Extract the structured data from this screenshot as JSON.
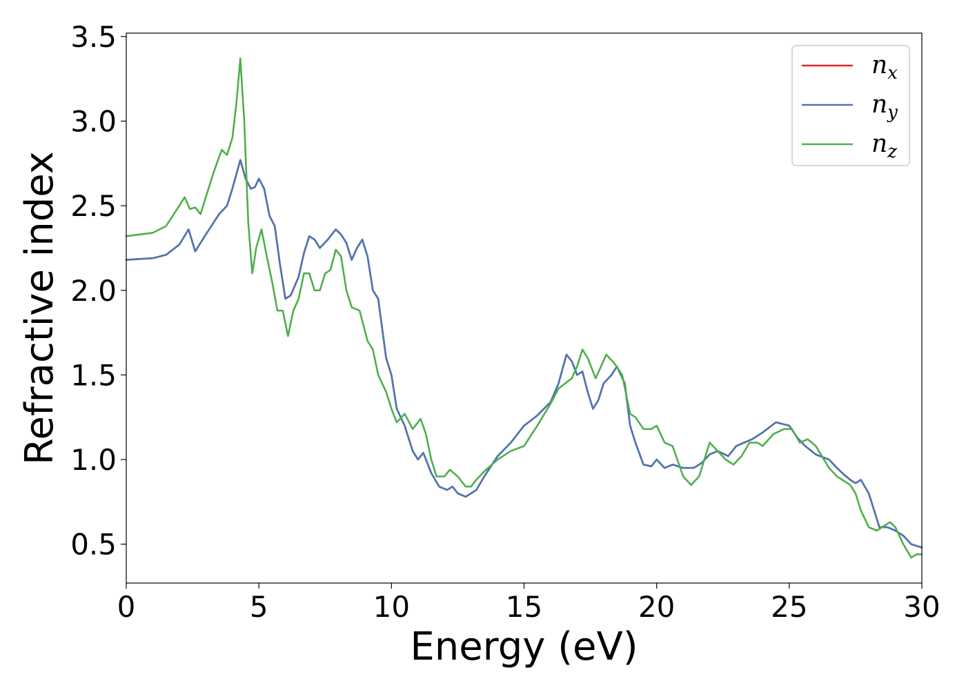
{
  "chart_data": {
    "type": "line",
    "title": "",
    "xlabel": "Energy (eV)",
    "ylabel": "Refractive index",
    "xlim": [
      0,
      30
    ],
    "ylim": [
      0.27,
      3.52
    ],
    "xticks": [
      0,
      5,
      10,
      15,
      20,
      25,
      30
    ],
    "xtick_labels": [
      "0",
      "5",
      "10",
      "15",
      "20",
      "25",
      "30"
    ],
    "yticks": [
      0.5,
      1.0,
      1.5,
      2.0,
      2.5,
      3.0,
      3.5
    ],
    "ytick_labels": [
      "0.5",
      "1.0",
      "1.5",
      "2.0",
      "2.5",
      "3.0",
      "3.5"
    ],
    "grid": false,
    "legend_position": "top-right",
    "series": [
      {
        "name": "n",
        "subscript": "x",
        "color": "#d62728",
        "points": [
          [
            0,
            2.18
          ],
          [
            1,
            2.19
          ],
          [
            1.5,
            2.21
          ],
          [
            2,
            2.27
          ],
          [
            2.35,
            2.36
          ],
          [
            2.6,
            2.23
          ],
          [
            3,
            2.33
          ],
          [
            3.5,
            2.45
          ],
          [
            3.8,
            2.5
          ],
          [
            4,
            2.6
          ],
          [
            4.3,
            2.77
          ],
          [
            4.5,
            2.66
          ],
          [
            4.7,
            2.6
          ],
          [
            4.85,
            2.61
          ],
          [
            5,
            2.66
          ],
          [
            5.2,
            2.6
          ],
          [
            5.4,
            2.44
          ],
          [
            5.6,
            2.38
          ],
          [
            5.8,
            2.15
          ],
          [
            6,
            1.95
          ],
          [
            6.2,
            1.97
          ],
          [
            6.5,
            2.08
          ],
          [
            6.7,
            2.22
          ],
          [
            6.9,
            2.32
          ],
          [
            7.1,
            2.3
          ],
          [
            7.3,
            2.25
          ],
          [
            7.6,
            2.3
          ],
          [
            7.9,
            2.36
          ],
          [
            8.1,
            2.33
          ],
          [
            8.3,
            2.28
          ],
          [
            8.5,
            2.18
          ],
          [
            8.7,
            2.25
          ],
          [
            8.9,
            2.3
          ],
          [
            9.1,
            2.2
          ],
          [
            9.3,
            2.0
          ],
          [
            9.5,
            1.95
          ],
          [
            9.8,
            1.6
          ],
          [
            10,
            1.5
          ],
          [
            10.2,
            1.3
          ],
          [
            10.5,
            1.2
          ],
          [
            10.8,
            1.05
          ],
          [
            11,
            1.0
          ],
          [
            11.2,
            1.04
          ],
          [
            11.5,
            0.92
          ],
          [
            11.8,
            0.84
          ],
          [
            12.1,
            0.82
          ],
          [
            12.3,
            0.84
          ],
          [
            12.5,
            0.8
          ],
          [
            12.8,
            0.78
          ],
          [
            13.2,
            0.82
          ],
          [
            13.5,
            0.9
          ],
          [
            14,
            1.02
          ],
          [
            14.5,
            1.1
          ],
          [
            15,
            1.2
          ],
          [
            15.5,
            1.26
          ],
          [
            16,
            1.34
          ],
          [
            16.3,
            1.45
          ],
          [
            16.6,
            1.62
          ],
          [
            16.8,
            1.58
          ],
          [
            17,
            1.5
          ],
          [
            17.2,
            1.52
          ],
          [
            17.4,
            1.4
          ],
          [
            17.6,
            1.3
          ],
          [
            17.8,
            1.35
          ],
          [
            18,
            1.45
          ],
          [
            18.3,
            1.5
          ],
          [
            18.5,
            1.55
          ],
          [
            18.8,
            1.45
          ],
          [
            19,
            1.2
          ],
          [
            19.2,
            1.1
          ],
          [
            19.5,
            0.97
          ],
          [
            19.8,
            0.96
          ],
          [
            20,
            1.0
          ],
          [
            20.3,
            0.95
          ],
          [
            20.6,
            0.97
          ],
          [
            21,
            0.95
          ],
          [
            21.4,
            0.95
          ],
          [
            21.7,
            0.98
          ],
          [
            22,
            1.03
          ],
          [
            22.3,
            1.05
          ],
          [
            22.7,
            1.02
          ],
          [
            23,
            1.08
          ],
          [
            23.3,
            1.1
          ],
          [
            23.6,
            1.12
          ],
          [
            24,
            1.16
          ],
          [
            24.5,
            1.22
          ],
          [
            25,
            1.2
          ],
          [
            25.3,
            1.13
          ],
          [
            25.6,
            1.08
          ],
          [
            26,
            1.03
          ],
          [
            26.5,
            1.0
          ],
          [
            26.8,
            0.95
          ],
          [
            27,
            0.92
          ],
          [
            27.3,
            0.88
          ],
          [
            27.5,
            0.86
          ],
          [
            27.7,
            0.88
          ],
          [
            28,
            0.8
          ],
          [
            28.2,
            0.7
          ],
          [
            28.4,
            0.6
          ],
          [
            28.7,
            0.6
          ],
          [
            29,
            0.58
          ],
          [
            29.3,
            0.55
          ],
          [
            29.6,
            0.5
          ],
          [
            30,
            0.48
          ]
        ]
      },
      {
        "name": "n",
        "subscript": "y",
        "color": "#4a77b4",
        "points": [
          [
            0,
            2.18
          ],
          [
            1,
            2.19
          ],
          [
            1.5,
            2.21
          ],
          [
            2,
            2.27
          ],
          [
            2.35,
            2.36
          ],
          [
            2.6,
            2.23
          ],
          [
            3,
            2.33
          ],
          [
            3.5,
            2.45
          ],
          [
            3.8,
            2.5
          ],
          [
            4,
            2.6
          ],
          [
            4.3,
            2.77
          ],
          [
            4.5,
            2.66
          ],
          [
            4.7,
            2.6
          ],
          [
            4.85,
            2.61
          ],
          [
            5,
            2.66
          ],
          [
            5.2,
            2.6
          ],
          [
            5.4,
            2.44
          ],
          [
            5.6,
            2.38
          ],
          [
            5.8,
            2.15
          ],
          [
            6,
            1.95
          ],
          [
            6.2,
            1.97
          ],
          [
            6.5,
            2.08
          ],
          [
            6.7,
            2.22
          ],
          [
            6.9,
            2.32
          ],
          [
            7.1,
            2.3
          ],
          [
            7.3,
            2.25
          ],
          [
            7.6,
            2.3
          ],
          [
            7.9,
            2.36
          ],
          [
            8.1,
            2.33
          ],
          [
            8.3,
            2.28
          ],
          [
            8.5,
            2.18
          ],
          [
            8.7,
            2.25
          ],
          [
            8.9,
            2.3
          ],
          [
            9.1,
            2.2
          ],
          [
            9.3,
            2.0
          ],
          [
            9.5,
            1.95
          ],
          [
            9.8,
            1.6
          ],
          [
            10,
            1.5
          ],
          [
            10.2,
            1.3
          ],
          [
            10.5,
            1.2
          ],
          [
            10.8,
            1.05
          ],
          [
            11,
            1.0
          ],
          [
            11.2,
            1.04
          ],
          [
            11.5,
            0.92
          ],
          [
            11.8,
            0.84
          ],
          [
            12.1,
            0.82
          ],
          [
            12.3,
            0.84
          ],
          [
            12.5,
            0.8
          ],
          [
            12.8,
            0.78
          ],
          [
            13.2,
            0.82
          ],
          [
            13.5,
            0.9
          ],
          [
            14,
            1.02
          ],
          [
            14.5,
            1.1
          ],
          [
            15,
            1.2
          ],
          [
            15.5,
            1.26
          ],
          [
            16,
            1.34
          ],
          [
            16.3,
            1.45
          ],
          [
            16.6,
            1.62
          ],
          [
            16.8,
            1.58
          ],
          [
            17,
            1.5
          ],
          [
            17.2,
            1.52
          ],
          [
            17.4,
            1.4
          ],
          [
            17.6,
            1.3
          ],
          [
            17.8,
            1.35
          ],
          [
            18,
            1.45
          ],
          [
            18.3,
            1.5
          ],
          [
            18.5,
            1.55
          ],
          [
            18.8,
            1.45
          ],
          [
            19,
            1.2
          ],
          [
            19.2,
            1.1
          ],
          [
            19.5,
            0.97
          ],
          [
            19.8,
            0.96
          ],
          [
            20,
            1.0
          ],
          [
            20.3,
            0.95
          ],
          [
            20.6,
            0.97
          ],
          [
            21,
            0.95
          ],
          [
            21.4,
            0.95
          ],
          [
            21.7,
            0.98
          ],
          [
            22,
            1.03
          ],
          [
            22.3,
            1.05
          ],
          [
            22.7,
            1.02
          ],
          [
            23,
            1.08
          ],
          [
            23.3,
            1.1
          ],
          [
            23.6,
            1.12
          ],
          [
            24,
            1.16
          ],
          [
            24.5,
            1.22
          ],
          [
            25,
            1.2
          ],
          [
            25.3,
            1.13
          ],
          [
            25.6,
            1.08
          ],
          [
            26,
            1.03
          ],
          [
            26.5,
            1.0
          ],
          [
            26.8,
            0.95
          ],
          [
            27,
            0.92
          ],
          [
            27.3,
            0.88
          ],
          [
            27.5,
            0.86
          ],
          [
            27.7,
            0.88
          ],
          [
            28,
            0.8
          ],
          [
            28.2,
            0.7
          ],
          [
            28.4,
            0.6
          ],
          [
            28.7,
            0.6
          ],
          [
            29,
            0.58
          ],
          [
            29.3,
            0.55
          ],
          [
            29.6,
            0.5
          ],
          [
            30,
            0.48
          ]
        ]
      },
      {
        "name": "n",
        "subscript": "z",
        "color": "#4daf4a",
        "points": [
          [
            0,
            2.32
          ],
          [
            1,
            2.34
          ],
          [
            1.5,
            2.38
          ],
          [
            2,
            2.5
          ],
          [
            2.2,
            2.55
          ],
          [
            2.4,
            2.48
          ],
          [
            2.6,
            2.49
          ],
          [
            2.8,
            2.45
          ],
          [
            3,
            2.55
          ],
          [
            3.3,
            2.7
          ],
          [
            3.6,
            2.83
          ],
          [
            3.8,
            2.8
          ],
          [
            4,
            2.9
          ],
          [
            4.15,
            3.1
          ],
          [
            4.3,
            3.37
          ],
          [
            4.45,
            3.0
          ],
          [
            4.6,
            2.4
          ],
          [
            4.75,
            2.1
          ],
          [
            4.9,
            2.25
          ],
          [
            5.1,
            2.36
          ],
          [
            5.3,
            2.2
          ],
          [
            5.5,
            2.05
          ],
          [
            5.7,
            1.88
          ],
          [
            5.9,
            1.88
          ],
          [
            6.1,
            1.73
          ],
          [
            6.3,
            1.88
          ],
          [
            6.5,
            1.95
          ],
          [
            6.7,
            2.1
          ],
          [
            6.9,
            2.1
          ],
          [
            7.1,
            2.0
          ],
          [
            7.3,
            2.0
          ],
          [
            7.5,
            2.1
          ],
          [
            7.7,
            2.12
          ],
          [
            7.9,
            2.24
          ],
          [
            8.1,
            2.2
          ],
          [
            8.3,
            2.0
          ],
          [
            8.5,
            1.9
          ],
          [
            8.8,
            1.88
          ],
          [
            9.1,
            1.7
          ],
          [
            9.3,
            1.65
          ],
          [
            9.5,
            1.5
          ],
          [
            9.8,
            1.4
          ],
          [
            10,
            1.3
          ],
          [
            10.2,
            1.22
          ],
          [
            10.5,
            1.27
          ],
          [
            10.8,
            1.18
          ],
          [
            11.1,
            1.24
          ],
          [
            11.3,
            1.15
          ],
          [
            11.5,
            1.0
          ],
          [
            11.7,
            0.9
          ],
          [
            12,
            0.9
          ],
          [
            12.2,
            0.94
          ],
          [
            12.5,
            0.9
          ],
          [
            12.8,
            0.84
          ],
          [
            13,
            0.84
          ],
          [
            13.2,
            0.88
          ],
          [
            13.5,
            0.93
          ],
          [
            14,
            1.0
          ],
          [
            14.5,
            1.05
          ],
          [
            15,
            1.08
          ],
          [
            15.5,
            1.2
          ],
          [
            16,
            1.33
          ],
          [
            16.3,
            1.42
          ],
          [
            16.8,
            1.48
          ],
          [
            17,
            1.55
          ],
          [
            17.2,
            1.65
          ],
          [
            17.4,
            1.6
          ],
          [
            17.7,
            1.48
          ],
          [
            17.9,
            1.55
          ],
          [
            18.1,
            1.62
          ],
          [
            18.4,
            1.57
          ],
          [
            18.7,
            1.5
          ],
          [
            19,
            1.27
          ],
          [
            19.2,
            1.25
          ],
          [
            19.5,
            1.18
          ],
          [
            19.8,
            1.18
          ],
          [
            20,
            1.2
          ],
          [
            20.3,
            1.1
          ],
          [
            20.6,
            1.08
          ],
          [
            21,
            0.9
          ],
          [
            21.3,
            0.85
          ],
          [
            21.6,
            0.9
          ],
          [
            22,
            1.1
          ],
          [
            22.3,
            1.05
          ],
          [
            22.6,
            1.0
          ],
          [
            22.9,
            0.97
          ],
          [
            23.2,
            1.02
          ],
          [
            23.5,
            1.1
          ],
          [
            23.8,
            1.1
          ],
          [
            24,
            1.08
          ],
          [
            24.4,
            1.15
          ],
          [
            24.8,
            1.18
          ],
          [
            25.1,
            1.18
          ],
          [
            25.4,
            1.1
          ],
          [
            25.7,
            1.12
          ],
          [
            26,
            1.08
          ],
          [
            26.5,
            0.95
          ],
          [
            26.8,
            0.9
          ],
          [
            27,
            0.88
          ],
          [
            27.3,
            0.85
          ],
          [
            27.5,
            0.8
          ],
          [
            27.7,
            0.7
          ],
          [
            28,
            0.6
          ],
          [
            28.3,
            0.58
          ],
          [
            28.5,
            0.6
          ],
          [
            28.8,
            0.63
          ],
          [
            29,
            0.6
          ],
          [
            29.3,
            0.5
          ],
          [
            29.6,
            0.42
          ],
          [
            29.8,
            0.44
          ],
          [
            30,
            0.44
          ]
        ]
      }
    ]
  }
}
